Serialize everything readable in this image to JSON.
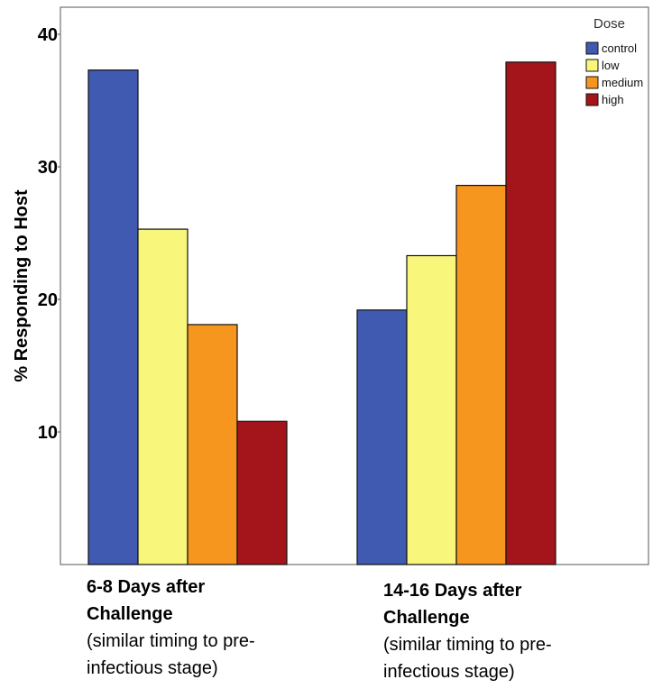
{
  "chart_data": {
    "type": "bar",
    "ylabel": "% Responding to Host",
    "ylim": [
      0,
      42
    ],
    "yticks": [
      10,
      20,
      30,
      40
    ],
    "categories": [
      [
        "6-8 Days after",
        "Challenge",
        "(similar timing to pre-",
        "infectious stage)"
      ],
      [
        "14-16 Days after",
        "Challenge",
        "(similar timing to pre-",
        "infectious stage)"
      ]
    ],
    "legend_title": "Dose",
    "legend_position": "top-right",
    "grid": false,
    "series": [
      {
        "name": "control",
        "color": "#3f5ab0",
        "values": [
          37.3,
          19.2
        ]
      },
      {
        "name": "low",
        "color": "#f9f77b",
        "values": [
          25.3,
          23.3
        ]
      },
      {
        "name": "medium",
        "color": "#f6961f",
        "values": [
          18.1,
          28.6
        ]
      },
      {
        "name": "high",
        "color": "#a3151a",
        "values": [
          10.8,
          37.9
        ]
      }
    ]
  }
}
